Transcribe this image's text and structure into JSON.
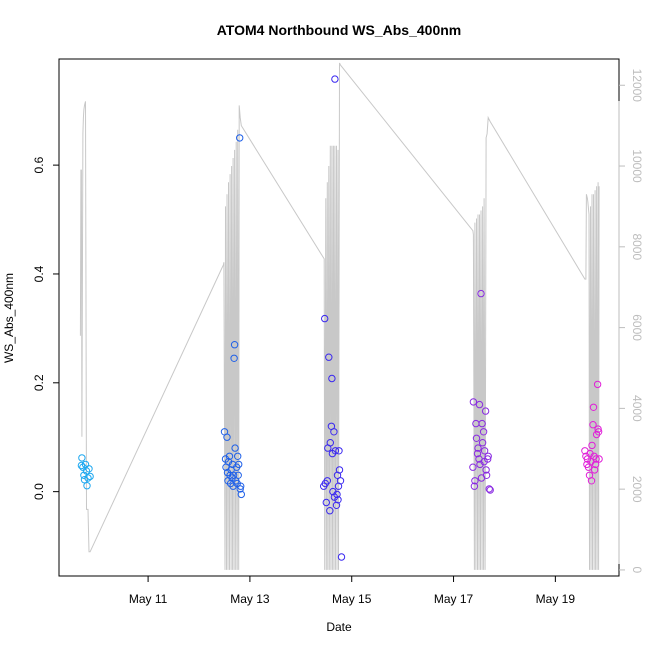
{
  "chart_data": {
    "type": "scatter",
    "title": "ATOM4 Northbound WS_Abs_400nm",
    "xlabel": "Date",
    "ylabel": "WS_Abs_400nm",
    "x_tick_labels": [
      "May 11",
      "May 13",
      "May 15",
      "May 17",
      "May 19"
    ],
    "x_ticks_day": [
      11,
      13,
      15,
      17,
      19
    ],
    "xlim_day": [
      9.25,
      20.25
    ],
    "ylim": [
      -0.155,
      0.795
    ],
    "y_ticks": [
      0.0,
      0.2,
      0.4,
      0.6
    ],
    "y_tick_labels": [
      "0.0",
      "0.2",
      "0.4",
      "0.6"
    ],
    "y2_ticks": [
      0,
      2000,
      4000,
      6000,
      8000,
      10000,
      12000
    ],
    "y2_tick_labels": [
      "0",
      "2000",
      "4000",
      "6000",
      "8000",
      "10000",
      "12000"
    ],
    "y2lim": [
      -150,
      12650
    ],
    "grid": false,
    "legend": "none",
    "colors": {
      "gray_line": "#c8c8c8",
      "right_axis": "#bdbdbd",
      "frame": "#000000"
    },
    "series": [
      {
        "type": "scatter",
        "color": "#1ea8f0",
        "x": [
          9.69,
          9.7,
          9.72,
          9.74,
          9.75,
          9.77,
          9.79,
          9.8,
          9.82,
          9.84,
          9.86
        ],
        "y": [
          0.048,
          0.062,
          0.045,
          0.03,
          0.022,
          0.05,
          0.038,
          0.011,
          0.025,
          0.042,
          0.028
        ]
      },
      {
        "type": "scatter",
        "color": "#1f60e8",
        "x": [
          12.5,
          12.52,
          12.53,
          12.55,
          12.56,
          12.57,
          12.58,
          12.6,
          12.61,
          12.62,
          12.63,
          12.65,
          12.66,
          12.67,
          12.68,
          12.69,
          12.7,
          12.71,
          12.72,
          12.74,
          12.75,
          12.76,
          12.77,
          12.78,
          12.8,
          12.81,
          12.82,
          12.83
        ],
        "y": [
          0.11,
          0.06,
          0.045,
          0.1,
          0.035,
          0.02,
          0.055,
          0.065,
          0.03,
          0.015,
          0.04,
          0.025,
          0.05,
          0.01,
          0.03,
          0.245,
          0.27,
          0.08,
          0.02,
          0.045,
          0.015,
          0.065,
          0.03,
          0.05,
          0.65,
          0.005,
          0.01,
          -0.005
        ]
      },
      {
        "type": "scatter",
        "color": "#3a28f0",
        "x": [
          14.45,
          14.47,
          14.48,
          14.5,
          14.52,
          14.53,
          14.55,
          14.57,
          14.58,
          14.6,
          14.61,
          14.62,
          14.63,
          14.65,
          14.66,
          14.67,
          14.68,
          14.7,
          14.71,
          14.72,
          14.73,
          14.74,
          14.75,
          14.76,
          14.78,
          14.8
        ],
        "y": [
          0.01,
          0.318,
          0.015,
          -0.02,
          0.02,
          0.08,
          0.247,
          -0.035,
          0.09,
          0.12,
          0.208,
          0.07,
          0.0,
          0.11,
          -0.01,
          0.758,
          0.075,
          -0.025,
          -0.005,
          0.03,
          -0.015,
          0.01,
          0.075,
          0.04,
          0.02,
          -0.12
        ]
      },
      {
        "type": "scatter",
        "color": "#8a2be2",
        "x": [
          17.38,
          17.39,
          17.41,
          17.42,
          17.44,
          17.45,
          17.47,
          17.48,
          17.5,
          17.51,
          17.52,
          17.54,
          17.55,
          17.56,
          17.57,
          17.59,
          17.6,
          17.61,
          17.63,
          17.64,
          17.65,
          17.67,
          17.68,
          17.7,
          17.72
        ],
        "y": [
          0.045,
          0.165,
          0.01,
          0.02,
          0.125,
          0.098,
          0.07,
          0.08,
          0.06,
          0.16,
          0.05,
          0.364,
          0.025,
          0.125,
          0.09,
          0.11,
          0.055,
          0.075,
          0.148,
          0.04,
          0.03,
          0.06,
          0.065,
          0.005,
          0.003
        ]
      },
      {
        "type": "scatter",
        "color": "#e020d8",
        "x": [
          19.58,
          19.6,
          19.62,
          19.63,
          19.65,
          19.67,
          19.68,
          19.7,
          19.71,
          19.72,
          19.74,
          19.75,
          19.76,
          19.77,
          19.79,
          19.8,
          19.81,
          19.83,
          19.84,
          19.85,
          19.86
        ],
        "y": [
          0.075,
          0.065,
          0.05,
          0.06,
          0.045,
          0.03,
          0.07,
          0.055,
          0.02,
          0.085,
          0.123,
          0.155,
          0.065,
          0.04,
          0.05,
          0.06,
          0.105,
          0.197,
          0.115,
          0.11,
          0.06
        ]
      },
      {
        "type": "line",
        "axis": "right",
        "color": "#c8c8c8",
        "x": [
          9.67,
          9.68,
          9.69,
          9.7,
          9.72,
          9.73,
          9.74,
          9.75,
          9.77,
          9.79,
          9.82,
          9.84,
          9.86,
          12.46,
          12.48,
          12.49,
          12.51,
          12.52,
          12.54,
          12.55,
          12.57,
          12.58,
          12.6,
          12.61,
          12.63,
          12.64,
          12.66,
          12.67,
          12.69,
          12.7,
          12.72,
          12.73,
          12.75,
          12.76,
          12.78,
          12.79,
          12.81,
          12.83,
          14.46,
          14.47,
          14.49,
          14.5,
          14.52,
          14.53,
          14.55,
          14.56,
          14.58,
          14.59,
          14.61,
          14.62,
          14.64,
          14.65,
          14.67,
          14.68,
          14.7,
          14.71,
          14.73,
          14.74,
          14.76,
          14.78,
          17.38,
          17.39,
          17.41,
          17.42,
          17.44,
          17.45,
          17.47,
          17.48,
          17.5,
          17.51,
          17.53,
          17.54,
          17.56,
          17.57,
          17.59,
          17.6,
          17.62,
          17.64,
          17.66,
          17.68,
          17.72,
          19.58,
          19.6,
          19.61,
          19.63,
          19.64,
          19.66,
          19.67,
          19.69,
          19.7,
          19.72,
          19.73,
          19.75,
          19.76,
          19.78,
          19.79,
          19.81,
          19.82,
          19.84,
          19.85,
          19.86
        ],
        "y": [
          5800,
          9900,
          9900,
          3300,
          10800,
          11200,
          11400,
          11500,
          11600,
          1500,
          1500,
          450,
          450,
          7500,
          7550,
          7620,
          0,
          9000,
          0,
          9300,
          0,
          9600,
          0,
          9800,
          0,
          10000,
          0,
          10200,
          0,
          10400,
          0,
          10600,
          0,
          10900,
          0,
          11500,
          11200,
          11000,
          7700,
          0,
          9200,
          0,
          9600,
          0,
          10000,
          0,
          10500,
          0,
          10500,
          0,
          10500,
          0,
          10500,
          0,
          10500,
          0,
          10400,
          0,
          12550,
          12500,
          8400,
          8300,
          0,
          8600,
          0,
          8700,
          0,
          8800,
          0,
          8800,
          0,
          8900,
          0,
          9000,
          0,
          9200,
          0,
          10700,
          10800,
          11200,
          11100,
          7200,
          7200,
          9300,
          9200,
          9100,
          8800,
          0,
          9000,
          0,
          9300,
          0,
          9300,
          0,
          9400,
          0,
          9500,
          0,
          9600,
          0,
          9500
        ]
      }
    ]
  }
}
